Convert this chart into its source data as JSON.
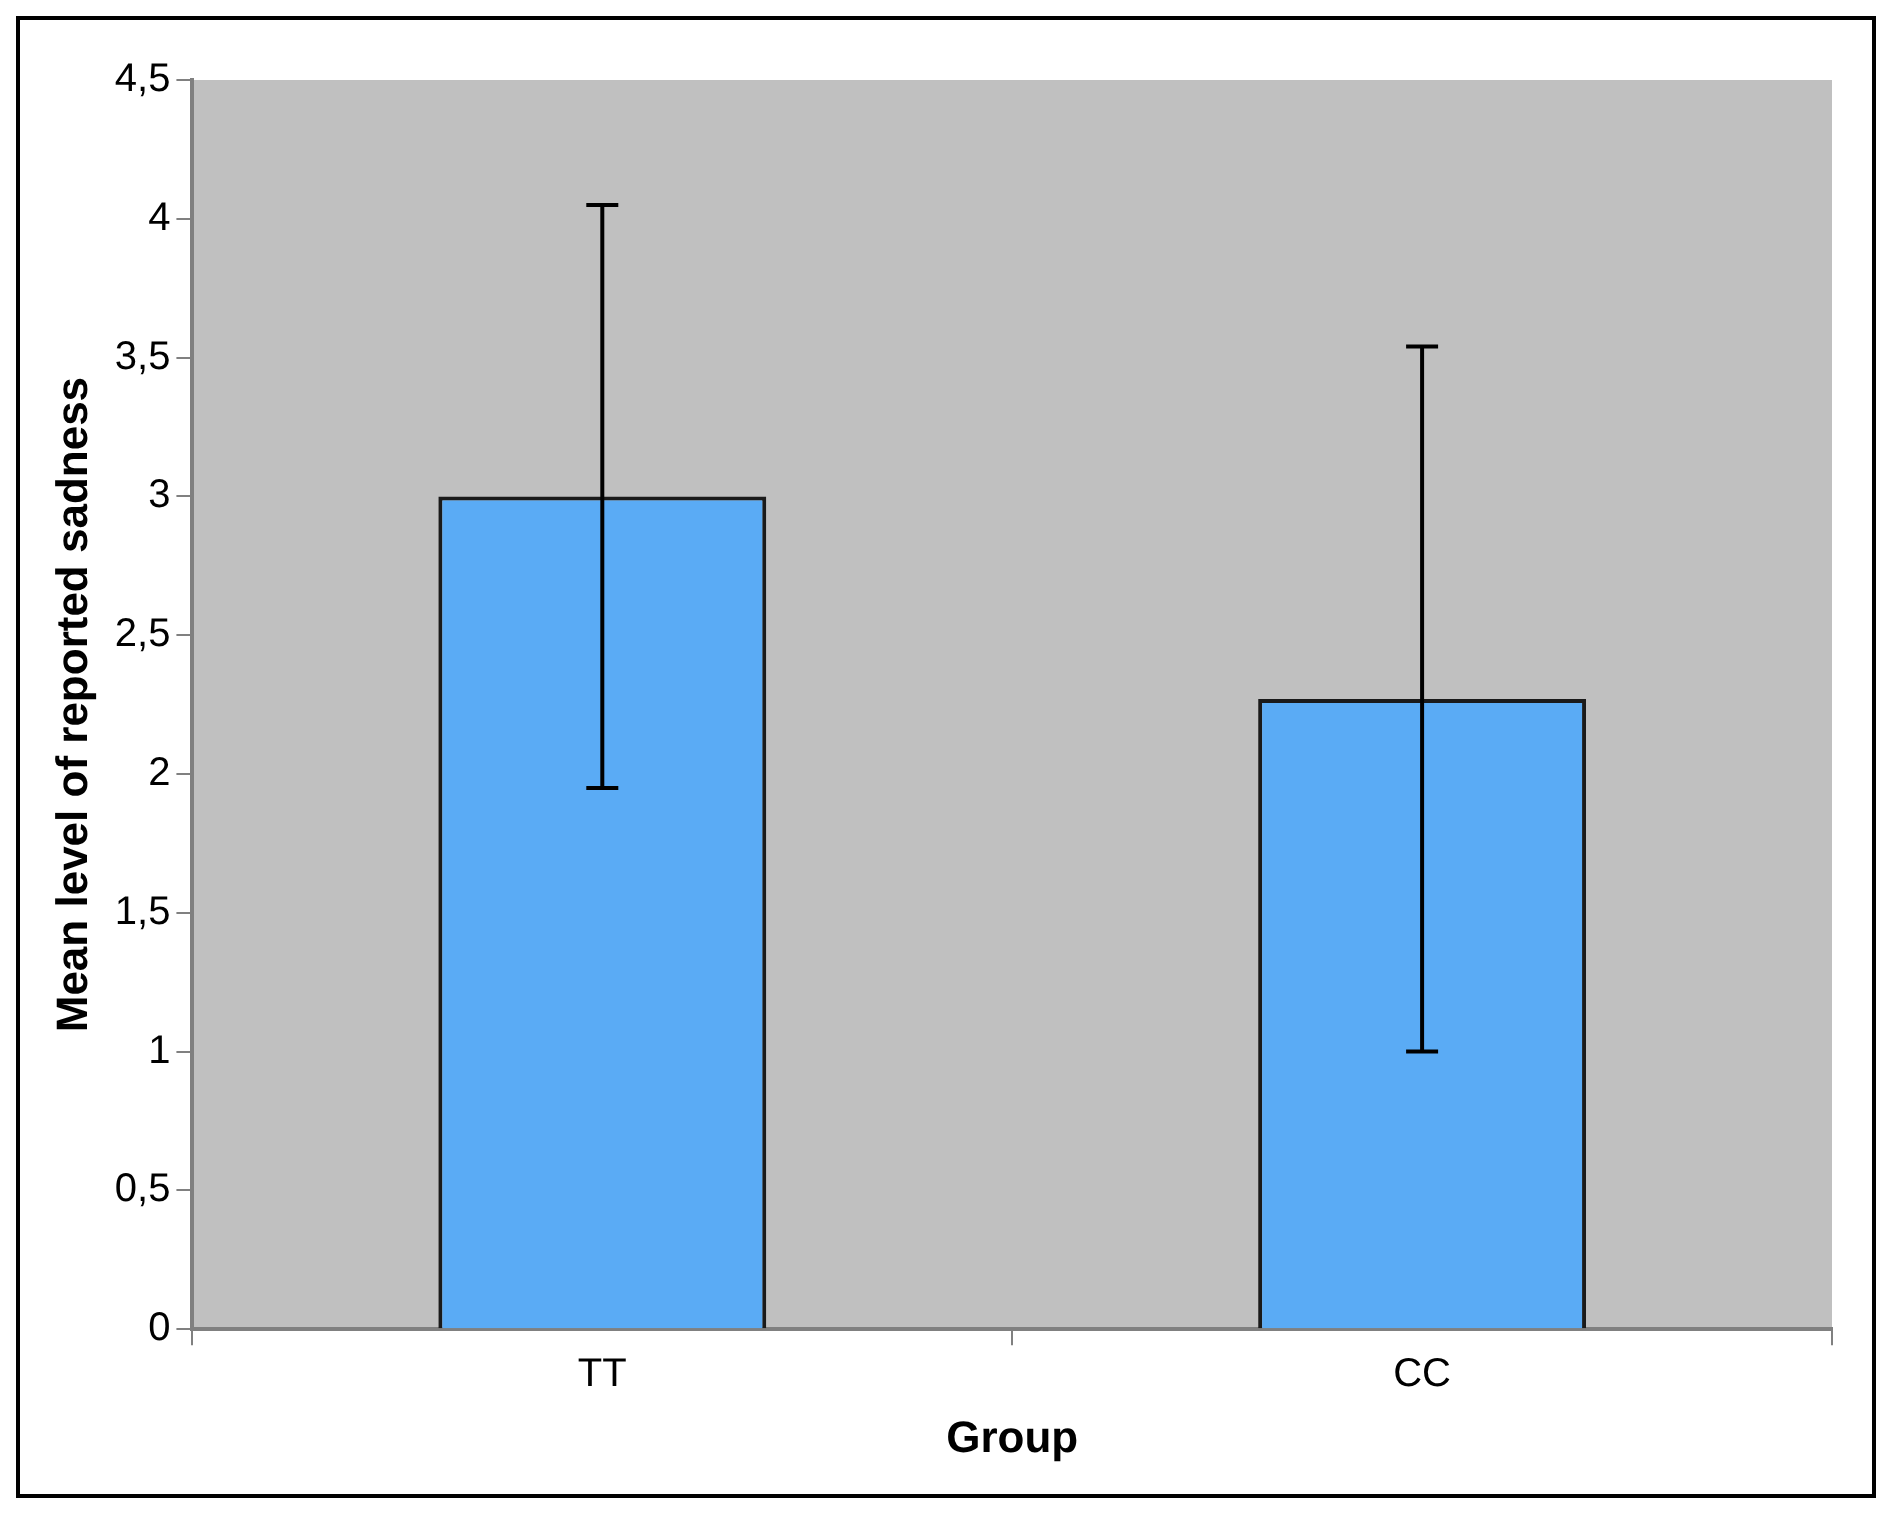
{
  "chart_data": {
    "type": "bar",
    "xlabel": "Group",
    "ylabel": "Mean level of reported sadness",
    "categories": [
      "TT",
      "CC"
    ],
    "values": [
      3.0,
      2.27
    ],
    "errors": [
      1.05,
      1.27
    ],
    "color": "#5aabf5",
    "ylim": [
      0,
      4.5
    ],
    "yticks": [
      0,
      {
        "value": 0.5,
        "label": "0,5"
      },
      1,
      {
        "value": 1.5,
        "label": "1,5"
      },
      2,
      {
        "value": 2.5,
        "label": "2,5"
      },
      3,
      {
        "value": 3.5,
        "label": "3,5"
      },
      4,
      {
        "value": 4.5,
        "label": "4,5"
      }
    ],
    "grid": false,
    "legend": false
  }
}
